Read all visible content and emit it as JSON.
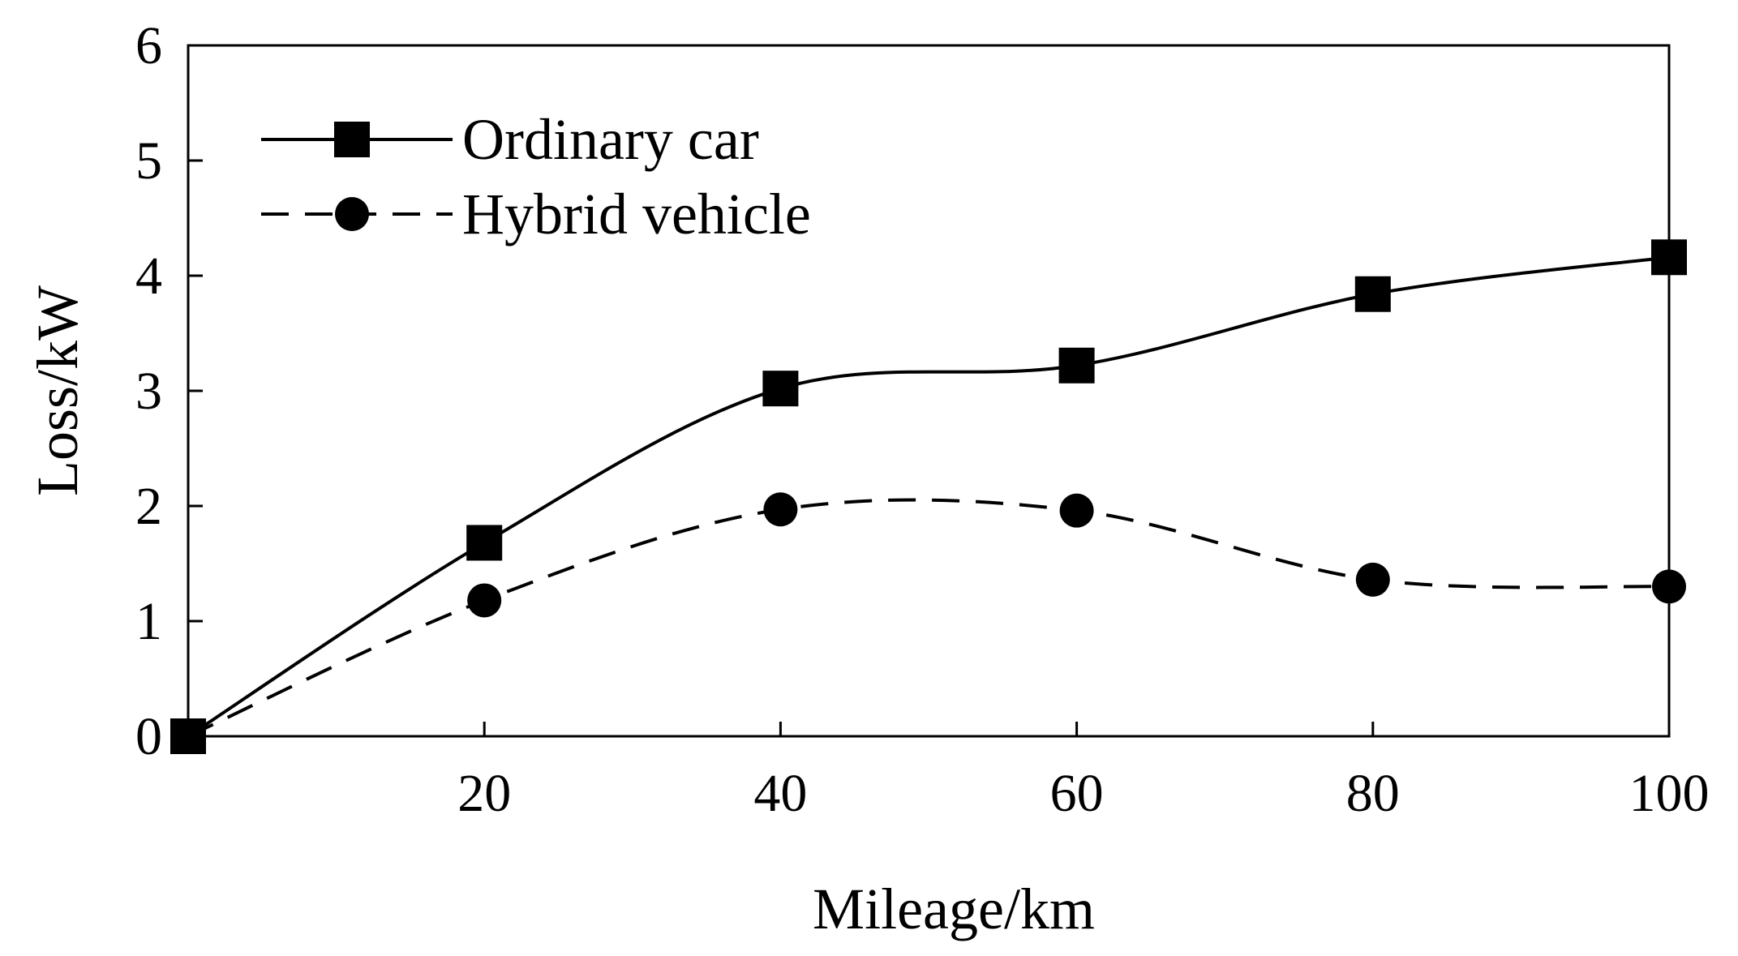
{
  "chart_data": {
    "type": "line",
    "title": "",
    "xlabel": "Mileage/km",
    "ylabel": "Loss/kW",
    "x": [
      0,
      20,
      40,
      60,
      80,
      100
    ],
    "xlim": [
      0,
      100
    ],
    "ylim": [
      0,
      6
    ],
    "x_ticks": [
      20,
      40,
      60,
      80,
      100
    ],
    "y_ticks": [
      0,
      1,
      2,
      3,
      4,
      5,
      6
    ],
    "grid": false,
    "legend_position": "top-left",
    "series": [
      {
        "name": "Ordinary car",
        "values": [
          0,
          1.68,
          3.02,
          3.22,
          3.84,
          4.16
        ],
        "line_style": "solid",
        "marker": "square",
        "color": "#000000"
      },
      {
        "name": "Hybrid vehicle",
        "values": [
          0,
          1.18,
          1.97,
          1.96,
          1.36,
          1.3
        ],
        "line_style": "dashed",
        "marker": "circle",
        "color": "#000000"
      }
    ]
  }
}
